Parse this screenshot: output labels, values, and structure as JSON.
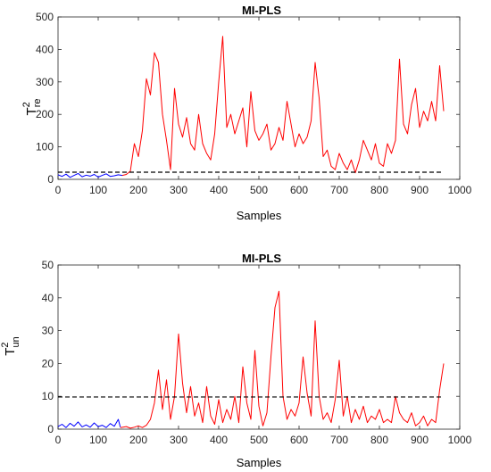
{
  "chart_data": [
    {
      "type": "line",
      "title": "MI-PLS",
      "xlabel": "Samples",
      "ylabel": {
        "base": "T",
        "sup": "2",
        "sub": "re"
      },
      "xlim": [
        0,
        1000
      ],
      "ylim": [
        0,
        500
      ],
      "xticks": [
        0,
        100,
        200,
        300,
        400,
        500,
        600,
        700,
        800,
        900,
        1000
      ],
      "yticks": [
        0,
        100,
        200,
        300,
        400,
        500
      ],
      "grid": false,
      "legend": "none",
      "threshold": {
        "value": 22,
        "x": [
          0,
          960
        ],
        "style": "dashed",
        "color": "#000000"
      },
      "series": [
        {
          "color": "#0000ff",
          "x": [
            0,
            10,
            20,
            30,
            40,
            50,
            60,
            70,
            80,
            90,
            100,
            110,
            120,
            130,
            140,
            150,
            160
          ],
          "y": [
            14,
            9,
            16,
            6,
            12,
            18,
            8,
            13,
            10,
            15,
            7,
            12,
            17,
            9,
            11,
            14,
            12
          ]
        },
        {
          "color": "#ff0000",
          "x": [
            160,
            170,
            180,
            190,
            200,
            210,
            220,
            230,
            240,
            250,
            260,
            270,
            280,
            290,
            300,
            310,
            320,
            330,
            340,
            350,
            360,
            370,
            380,
            390,
            400,
            410,
            420,
            430,
            440,
            450,
            460,
            470,
            480,
            490,
            500,
            510,
            520,
            530,
            540,
            550,
            560,
            570,
            580,
            590,
            600,
            610,
            620,
            630,
            640,
            650,
            660,
            670,
            680,
            690,
            700,
            710,
            720,
            730,
            740,
            750,
            760,
            770,
            780,
            790,
            800,
            810,
            820,
            830,
            840,
            850,
            860,
            870,
            880,
            890,
            900,
            910,
            920,
            930,
            940,
            950,
            960
          ],
          "y": [
            12,
            15,
            25,
            110,
            70,
            150,
            310,
            260,
            390,
            360,
            200,
            120,
            30,
            280,
            170,
            130,
            190,
            110,
            90,
            200,
            110,
            80,
            60,
            140,
            300,
            440,
            160,
            200,
            140,
            180,
            220,
            100,
            270,
            150,
            120,
            140,
            170,
            90,
            110,
            160,
            120,
            240,
            170,
            100,
            140,
            110,
            130,
            180,
            360,
            250,
            70,
            90,
            40,
            30,
            80,
            50,
            30,
            60,
            20,
            60,
            120,
            90,
            60,
            110,
            50,
            40,
            110,
            80,
            120,
            370,
            170,
            140,
            230,
            280,
            160,
            210,
            180,
            240,
            180,
            350,
            210
          ]
        }
      ]
    },
    {
      "type": "line",
      "title": "MI-PLS",
      "xlabel": "Samples",
      "ylabel": {
        "base": "T",
        "sup": "2",
        "sub": "un"
      },
      "xlim": [
        0,
        1000
      ],
      "ylim": [
        0,
        50
      ],
      "xticks": [
        0,
        100,
        200,
        300,
        400,
        500,
        600,
        700,
        800,
        900,
        1000
      ],
      "yticks": [
        0,
        10,
        20,
        30,
        40,
        50
      ],
      "grid": false,
      "legend": "none",
      "threshold": {
        "value": 9.8,
        "x": [
          0,
          960
        ],
        "style": "dashed",
        "color": "#000000"
      },
      "series": [
        {
          "color": "#0000ff",
          "x": [
            0,
            10,
            20,
            30,
            40,
            50,
            60,
            70,
            80,
            90,
            100,
            110,
            120,
            130,
            140,
            150,
            155
          ],
          "y": [
            0.8,
            1.5,
            0.5,
            1.8,
            0.9,
            2.2,
            0.7,
            1.3,
            0.6,
            1.9,
            0.8,
            1.2,
            0.5,
            1.7,
            0.9,
            3.0,
            0.6
          ]
        },
        {
          "color": "#ff0000",
          "x": [
            155,
            170,
            180,
            190,
            200,
            210,
            220,
            230,
            240,
            250,
            260,
            270,
            280,
            290,
            300,
            310,
            320,
            330,
            340,
            350,
            360,
            370,
            380,
            390,
            400,
            410,
            420,
            430,
            440,
            450,
            460,
            470,
            480,
            490,
            500,
            510,
            520,
            530,
            540,
            550,
            560,
            570,
            580,
            590,
            600,
            610,
            620,
            630,
            640,
            650,
            660,
            670,
            680,
            690,
            700,
            710,
            720,
            730,
            740,
            750,
            760,
            770,
            780,
            790,
            800,
            810,
            820,
            830,
            840,
            850,
            860,
            870,
            880,
            890,
            900,
            910,
            920,
            930,
            940,
            950,
            960
          ],
          "y": [
            0.5,
            0.8,
            0.3,
            0.6,
            1.0,
            0.5,
            1.2,
            3.0,
            8.0,
            18.0,
            6.0,
            15.0,
            3.0,
            10.0,
            29.0,
            14.0,
            5.0,
            13.0,
            4.0,
            8.0,
            2.0,
            13.0,
            4.0,
            1.5,
            9.0,
            2.0,
            6.0,
            3.0,
            10.0,
            2.0,
            19.0,
            8.0,
            3.0,
            24.0,
            7.0,
            1.0,
            5.0,
            22.0,
            37.0,
            42.0,
            10.0,
            3.0,
            6.0,
            4.0,
            8.0,
            22.0,
            11.0,
            4.0,
            33.0,
            10.0,
            3.0,
            5.0,
            2.0,
            9.0,
            21.0,
            4.0,
            10.0,
            2.0,
            6.0,
            3.0,
            7.0,
            2.0,
            4.0,
            3.0,
            6.0,
            2.0,
            3.0,
            2.0,
            10.0,
            5.0,
            3.0,
            2.0,
            5.0,
            1.0,
            2.0,
            4.0,
            1.0,
            3.0,
            2.0,
            12.0,
            20.0
          ]
        }
      ]
    }
  ]
}
